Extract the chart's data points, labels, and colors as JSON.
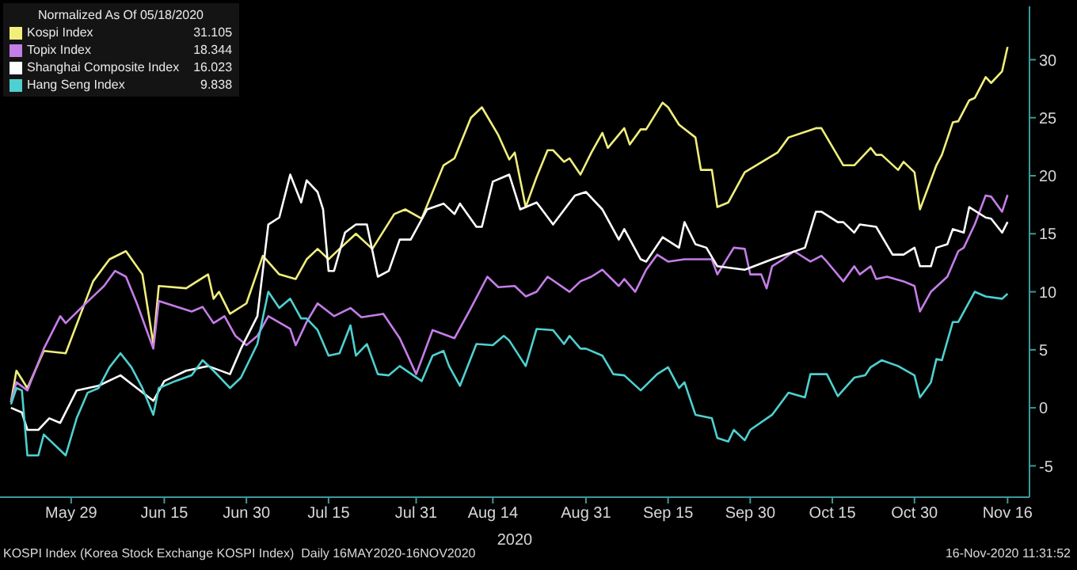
{
  "chart_data": {
    "type": "line",
    "legend_title": "Normalized As Of 05/18/2020",
    "xlabel": "2020",
    "annotations": [
      "31.105",
      "18.344",
      "16.023",
      "9.838",
      "KOSPI Index (Korea Stock Exchange KOSPI Index)  Daily 16MAY2020-16NOV2020",
      "16-Nov-2020 11:31:52"
    ],
    "xlim": [
      "2020-05-16",
      "2020-11-20"
    ],
    "xticks": [
      {
        "value": "2020-05-29",
        "label": "May 29"
      },
      {
        "value": "2020-06-15",
        "label": "Jun 15"
      },
      {
        "value": "2020-06-30",
        "label": "Jun 30"
      },
      {
        "value": "2020-07-15",
        "label": "Jul 15"
      },
      {
        "value": "2020-07-31",
        "label": "Jul 31"
      },
      {
        "value": "2020-08-14",
        "label": "Aug 14"
      },
      {
        "value": "2020-08-31",
        "label": "Aug 31"
      },
      {
        "value": "2020-09-15",
        "label": "Sep 15"
      },
      {
        "value": "2020-09-30",
        "label": "Sep 30"
      },
      {
        "value": "2020-10-15",
        "label": "Oct 15"
      },
      {
        "value": "2020-10-30",
        "label": "Oct 30"
      },
      {
        "value": "2020-11-16",
        "label": "Nov 16"
      }
    ],
    "ylim": [
      -7.7,
      34.6
    ],
    "yticks": [
      -5,
      0,
      5,
      10,
      15,
      20,
      25,
      30
    ],
    "grid": false,
    "legend": "top left",
    "marker": "none",
    "line_style": "solid",
    "series": [
      {
        "name": "Kospi Index",
        "color": "#f0ee7c",
        "x": [
          "2020-05-18",
          "2020-05-19",
          "2020-05-21",
          "2020-05-24",
          "2020-05-28",
          "2020-06-02",
          "2020-06-05",
          "2020-06-08",
          "2020-06-11",
          "2020-06-13",
          "2020-06-14",
          "2020-06-19",
          "2020-06-23",
          "2020-06-24",
          "2020-06-25",
          "2020-06-27",
          "2020-06-30",
          "2020-07-03",
          "2020-07-06",
          "2020-07-09",
          "2020-07-11",
          "2020-07-13",
          "2020-07-15",
          "2020-07-17",
          "2020-07-20",
          "2020-07-23",
          "2020-07-27",
          "2020-07-29",
          "2020-08-01",
          "2020-08-05",
          "2020-08-07",
          "2020-08-10",
          "2020-08-12",
          "2020-08-15",
          "2020-08-17",
          "2020-08-18",
          "2020-08-20",
          "2020-08-22",
          "2020-08-24",
          "2020-08-25",
          "2020-08-27",
          "2020-08-28",
          "2020-08-30",
          "2020-09-01",
          "2020-09-03",
          "2020-09-04",
          "2020-09-07",
          "2020-09-08",
          "2020-09-10",
          "2020-09-11",
          "2020-09-14",
          "2020-09-15",
          "2020-09-17",
          "2020-09-20",
          "2020-09-21",
          "2020-09-23",
          "2020-09-24",
          "2020-09-26",
          "2020-09-29",
          "2020-10-05",
          "2020-10-07",
          "2020-10-12",
          "2020-10-13",
          "2020-10-17",
          "2020-10-19",
          "2020-10-22",
          "2020-10-23",
          "2020-10-24",
          "2020-10-27",
          "2020-10-28",
          "2020-10-30",
          "2020-10-31",
          "2020-11-03",
          "2020-11-04",
          "2020-11-06",
          "2020-11-07",
          "2020-11-09",
          "2020-11-10",
          "2020-11-12",
          "2020-11-13",
          "2020-11-15",
          "2020-11-16"
        ],
        "values": [
          0.5,
          3.2,
          1.7,
          4.9,
          4.7,
          10.9,
          12.8,
          13.5,
          11.5,
          5.5,
          10.5,
          10.3,
          11.5,
          9.4,
          10,
          8.1,
          9,
          13.1,
          11.5,
          11.1,
          12.8,
          13.7,
          12.8,
          13.7,
          15,
          13.7,
          16.7,
          17.1,
          16.3,
          20.9,
          21.5,
          25,
          25.9,
          23.5,
          21.4,
          22,
          17.3,
          19.9,
          22.2,
          22.2,
          21.2,
          21.5,
          20.1,
          22,
          23.7,
          22.4,
          24.1,
          22.7,
          24,
          24,
          26.3,
          25.9,
          24.4,
          23.3,
          20.5,
          20.5,
          17.3,
          17.7,
          20.3,
          22,
          23.3,
          24.1,
          24.1,
          20.9,
          20.9,
          22.4,
          21.8,
          21.8,
          20.5,
          21.2,
          20.3,
          17.1,
          20.9,
          21.8,
          24.6,
          24.7,
          26.5,
          26.7,
          28.5,
          28,
          29,
          31.105
        ]
      },
      {
        "name": "Topix Index",
        "color": "#c47ee8",
        "x": [
          "2020-05-18",
          "2020-05-19",
          "2020-05-21",
          "2020-05-24",
          "2020-05-27",
          "2020-05-28",
          "2020-05-31",
          "2020-06-02",
          "2020-06-04",
          "2020-06-06",
          "2020-06-08",
          "2020-06-10",
          "2020-06-13",
          "2020-06-14",
          "2020-06-20",
          "2020-06-22",
          "2020-06-24",
          "2020-06-26",
          "2020-06-28",
          "2020-06-30",
          "2020-07-02",
          "2020-07-04",
          "2020-07-08",
          "2020-07-09",
          "2020-07-11",
          "2020-07-13",
          "2020-07-16",
          "2020-07-19",
          "2020-07-21",
          "2020-07-25",
          "2020-07-28",
          "2020-07-31",
          "2020-08-03",
          "2020-08-07",
          "2020-08-10",
          "2020-08-13",
          "2020-08-15",
          "2020-08-18",
          "2020-08-20",
          "2020-08-22",
          "2020-08-24",
          "2020-08-28",
          "2020-08-30",
          "2020-09-01",
          "2020-09-03",
          "2020-09-06",
          "2020-09-07",
          "2020-09-09",
          "2020-09-11",
          "2020-09-13",
          "2020-09-15",
          "2020-09-18",
          "2020-09-19",
          "2020-09-23",
          "2020-09-24",
          "2020-09-27",
          "2020-09-29",
          "2020-09-30",
          "2020-10-02",
          "2020-10-03",
          "2020-10-04",
          "2020-10-06",
          "2020-10-08",
          "2020-10-11",
          "2020-10-13",
          "2020-10-14",
          "2020-10-17",
          "2020-10-19",
          "2020-10-20",
          "2020-10-22",
          "2020-10-23",
          "2020-10-25",
          "2020-10-28",
          "2020-10-30",
          "2020-10-31",
          "2020-11-02",
          "2020-11-05",
          "2020-11-07",
          "2020-11-08",
          "2020-11-10",
          "2020-11-12",
          "2020-11-13",
          "2020-11-15",
          "2020-11-16"
        ],
        "values": [
          0.5,
          2.2,
          1.5,
          5.1,
          7.9,
          7.3,
          8.7,
          9.6,
          10.5,
          11.8,
          11.3,
          9,
          5.1,
          9.2,
          8.3,
          8.7,
          7.3,
          7.9,
          6.2,
          5.4,
          6.2,
          7.9,
          6.8,
          5.4,
          7.4,
          9,
          7.9,
          8.6,
          7.8,
          8.1,
          6,
          2.9,
          6.7,
          6,
          8.6,
          11.3,
          10.4,
          10.5,
          9.6,
          10,
          11.3,
          10,
          10.9,
          11.3,
          11.9,
          10.5,
          11.1,
          10,
          11.9,
          13.2,
          12.6,
          12.8,
          12.8,
          12.8,
          11.5,
          13.8,
          13.7,
          11.5,
          11.5,
          10.3,
          12.2,
          12.8,
          13.5,
          12.6,
          13.1,
          12.6,
          10.9,
          12.2,
          11.5,
          12.2,
          11.1,
          11.3,
          10.9,
          10.5,
          8.3,
          10,
          11.3,
          13.5,
          13.8,
          15.8,
          18.3,
          18.2,
          16.9,
          18.344
        ]
      },
      {
        "name": "Shanghai Composite Index",
        "color": "#ffffff",
        "x": [
          "2020-05-18",
          "2020-05-20",
          "2020-05-21",
          "2020-05-23",
          "2020-05-25",
          "2020-05-27",
          "2020-05-30",
          "2020-06-03",
          "2020-06-07",
          "2020-06-10",
          "2020-06-13",
          "2020-06-15",
          "2020-06-19",
          "2020-06-23",
          "2020-06-27",
          "2020-06-29",
          "2020-07-02",
          "2020-07-04",
          "2020-07-06",
          "2020-07-08",
          "2020-07-10",
          "2020-07-11",
          "2020-07-13",
          "2020-07-14",
          "2020-07-15",
          "2020-07-16",
          "2020-07-18",
          "2020-07-20",
          "2020-07-22",
          "2020-07-24",
          "2020-07-26",
          "2020-07-28",
          "2020-07-30",
          "2020-08-02",
          "2020-08-05",
          "2020-08-07",
          "2020-08-08",
          "2020-08-11",
          "2020-08-12",
          "2020-08-14",
          "2020-08-17",
          "2020-08-19",
          "2020-08-22",
          "2020-08-25",
          "2020-08-29",
          "2020-08-31",
          "2020-09-03",
          "2020-09-06",
          "2020-09-07",
          "2020-09-10",
          "2020-09-11",
          "2020-09-14",
          "2020-09-17",
          "2020-09-18",
          "2020-09-20",
          "2020-09-22",
          "2020-09-24",
          "2020-09-29",
          "2020-10-04",
          "2020-10-10",
          "2020-10-12",
          "2020-10-13",
          "2020-10-16",
          "2020-10-17",
          "2020-10-19",
          "2020-10-20",
          "2020-10-23",
          "2020-10-26",
          "2020-10-28",
          "2020-10-30",
          "2020-10-31",
          "2020-11-02",
          "2020-11-03",
          "2020-11-05",
          "2020-11-06",
          "2020-11-08",
          "2020-11-09",
          "2020-11-12",
          "2020-11-13",
          "2020-11-15",
          "2020-11-16"
        ],
        "values": [
          0,
          -0.4,
          -1.9,
          -1.9,
          -0.9,
          -1.3,
          1.5,
          1.9,
          2.8,
          1.7,
          0.6,
          2.3,
          3.2,
          3.6,
          2.9,
          5.1,
          7.9,
          15.8,
          16.4,
          20.1,
          17.7,
          19.6,
          18.6,
          17.1,
          11.8,
          11.8,
          15.1,
          15.8,
          15.8,
          11.3,
          11.8,
          14.5,
          14.5,
          17.1,
          17.6,
          16.7,
          17.6,
          15.6,
          15.6,
          19.5,
          20.1,
          17.1,
          17.7,
          15.8,
          18.3,
          18.6,
          17.1,
          14.5,
          15.4,
          12.8,
          12.6,
          14.7,
          13.8,
          16,
          14.1,
          13.8,
          12.2,
          11.9,
          12.8,
          13.8,
          16.9,
          16.9,
          16,
          16,
          15.1,
          15.8,
          15.6,
          13.2,
          13.2,
          13.8,
          12.2,
          12.2,
          13.8,
          14.1,
          15.4,
          15.1,
          17.3,
          16.4,
          16.3,
          15.1,
          16.023
        ]
      },
      {
        "name": "Hang Seng Index",
        "color": "#4fd0d0",
        "x": [
          "2020-05-18",
          "2020-05-19",
          "2020-05-20",
          "2020-05-21",
          "2020-05-23",
          "2020-05-24",
          "2020-05-28",
          "2020-05-30",
          "2020-06-01",
          "2020-06-03",
          "2020-06-05",
          "2020-06-07",
          "2020-06-09",
          "2020-06-11",
          "2020-06-13",
          "2020-06-14",
          "2020-06-17",
          "2020-06-20",
          "2020-06-22",
          "2020-06-24",
          "2020-06-27",
          "2020-06-29",
          "2020-07-02",
          "2020-07-04",
          "2020-07-06",
          "2020-07-08",
          "2020-07-10",
          "2020-07-11",
          "2020-07-13",
          "2020-07-15",
          "2020-07-17",
          "2020-07-19",
          "2020-07-20",
          "2020-07-22",
          "2020-07-24",
          "2020-07-26",
          "2020-07-28",
          "2020-08-01",
          "2020-08-03",
          "2020-08-05",
          "2020-08-06",
          "2020-08-08",
          "2020-08-11",
          "2020-08-14",
          "2020-08-16",
          "2020-08-17",
          "2020-08-20",
          "2020-08-22",
          "2020-08-25",
          "2020-08-27",
          "2020-08-28",
          "2020-08-30",
          "2020-08-31",
          "2020-09-03",
          "2020-09-05",
          "2020-09-07",
          "2020-09-10",
          "2020-09-13",
          "2020-09-15",
          "2020-09-17",
          "2020-09-18",
          "2020-09-20",
          "2020-09-23",
          "2020-09-24",
          "2020-09-26",
          "2020-09-27",
          "2020-09-29",
          "2020-09-30",
          "2020-10-04",
          "2020-10-07",
          "2020-10-10",
          "2020-10-11",
          "2020-10-14",
          "2020-10-16",
          "2020-10-19",
          "2020-10-21",
          "2020-10-22",
          "2020-10-24",
          "2020-10-27",
          "2020-10-30",
          "2020-10-31",
          "2020-11-02",
          "2020-11-03",
          "2020-11-04",
          "2020-11-06",
          "2020-11-07",
          "2020-11-10",
          "2020-11-12",
          "2020-11-15",
          "2020-11-16"
        ],
        "values": [
          0.3,
          1.7,
          1.5,
          -4.1,
          -4.1,
          -2.3,
          -4.1,
          -0.9,
          1.3,
          1.7,
          3.5,
          4.7,
          3.5,
          1.7,
          -0.6,
          1.7,
          2.3,
          2.8,
          4.1,
          3.2,
          1.7,
          2.6,
          5.5,
          10,
          8.6,
          9.4,
          7.7,
          7.7,
          6.7,
          4.5,
          4.7,
          7.1,
          4.5,
          5.5,
          2.9,
          2.8,
          3.6,
          2.3,
          4.5,
          4.9,
          3.6,
          1.9,
          5.5,
          5.4,
          6.2,
          5.8,
          3.6,
          6.8,
          6.7,
          5.5,
          6.2,
          5.1,
          5.1,
          4.5,
          2.9,
          2.8,
          1.5,
          2.9,
          3.5,
          1.7,
          2.2,
          -0.6,
          -0.9,
          -2.6,
          -2.9,
          -1.9,
          -2.8,
          -1.9,
          -0.6,
          1.3,
          0.9,
          2.9,
          2.9,
          1,
          2.6,
          2.8,
          3.5,
          4.1,
          3.6,
          2.8,
          0.9,
          2.2,
          4.2,
          4.1,
          7.4,
          7.4,
          10,
          9.6,
          9.4,
          9.838
        ]
      }
    ]
  }
}
